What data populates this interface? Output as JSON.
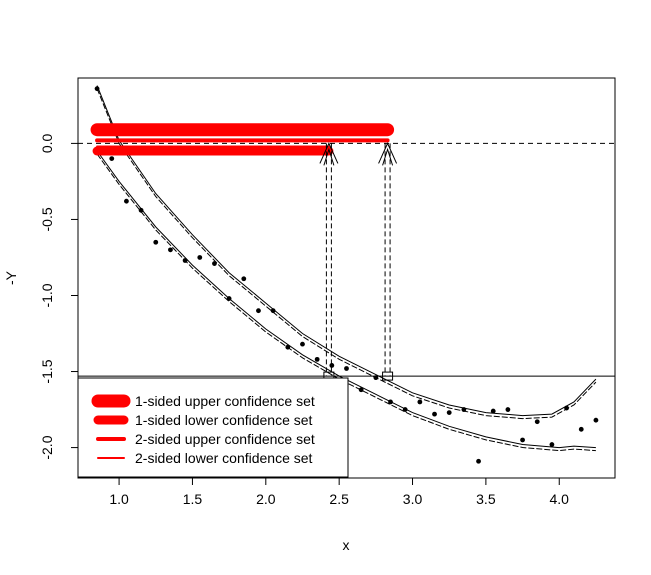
{
  "chart_data": {
    "type": "scatter",
    "xlabel": "x",
    "ylabel": "-Y",
    "xlim": [
      0.72,
      4.38
    ],
    "ylim": [
      -2.2,
      0.43
    ],
    "x_ticks": [
      "1.0",
      "1.5",
      "2.0",
      "2.5",
      "3.0",
      "3.5",
      "4.0"
    ],
    "y_ticks": [
      "0.0",
      "-0.5",
      "-1.0",
      "-1.5",
      "-2.0"
    ],
    "x_tick_values": [
      1.0,
      1.5,
      2.0,
      2.5,
      3.0,
      3.5,
      4.0
    ],
    "y_tick_values": [
      0.0,
      -0.5,
      -1.0,
      -1.5,
      -2.0
    ],
    "points": [
      [
        0.85,
        0.36
      ],
      [
        0.95,
        -0.1
      ],
      [
        1.05,
        -0.38
      ],
      [
        1.15,
        -0.44
      ],
      [
        1.25,
        -0.65
      ],
      [
        1.35,
        -0.7
      ],
      [
        1.45,
        -0.77
      ],
      [
        1.55,
        -0.75
      ],
      [
        1.65,
        -0.79
      ],
      [
        1.75,
        -1.02
      ],
      [
        1.85,
        -0.89
      ],
      [
        1.95,
        -1.1
      ],
      [
        2.05,
        -1.1
      ],
      [
        2.15,
        -1.34
      ],
      [
        2.25,
        -1.32
      ],
      [
        2.35,
        -1.42
      ],
      [
        2.45,
        -1.46
      ],
      [
        2.55,
        -1.48
      ],
      [
        2.65,
        -1.62
      ],
      [
        2.75,
        -1.54
      ],
      [
        2.85,
        -1.7
      ],
      [
        2.95,
        -1.75
      ],
      [
        3.05,
        -1.7
      ],
      [
        3.15,
        -1.78
      ],
      [
        3.25,
        -1.77
      ],
      [
        3.35,
        -1.75
      ],
      [
        3.45,
        -2.09
      ],
      [
        3.55,
        -1.76
      ],
      [
        3.65,
        -1.75
      ],
      [
        3.75,
        -1.95
      ],
      [
        3.85,
        -1.83
      ],
      [
        3.95,
        -1.98
      ],
      [
        4.05,
        -1.74
      ],
      [
        4.15,
        -1.88
      ],
      [
        4.25,
        -1.82
      ]
    ],
    "reference_lines": {
      "horizontal_dashed_y": 0.0,
      "horizontal_solid_y": -1.53
    },
    "confidence_sets": [
      {
        "label": "1-sided upper confidence set",
        "y": 0.09,
        "x_range": [
          0.85,
          2.83
        ]
      },
      {
        "label": "1-sided lower confidence set",
        "y": -0.05,
        "x_range": [
          0.85,
          2.43
        ]
      },
      {
        "label": "2-sided upper confidence set",
        "y": 0.02,
        "x_range": [
          0.85,
          2.83
        ]
      },
      {
        "label": "2-sided lower confidence set",
        "y": -0.02,
        "x_range": [
          0.85,
          2.43
        ]
      }
    ],
    "vertical_markers_x": [
      2.43,
      2.83
    ],
    "bands": {
      "upper_band_x": [
        0.85,
        1.0,
        1.25,
        1.5,
        1.75,
        2.0,
        2.25,
        2.5,
        2.75,
        3.0,
        3.25,
        3.5,
        3.75,
        3.95,
        4.1,
        4.25
      ],
      "upper_band_y": [
        0.38,
        0.02,
        -0.33,
        -0.6,
        -0.85,
        -1.05,
        -1.25,
        -1.4,
        -1.52,
        -1.64,
        -1.72,
        -1.77,
        -1.79,
        -1.78,
        -1.7,
        -1.55
      ],
      "lower_band_x": [
        0.85,
        1.0,
        1.25,
        1.5,
        1.75,
        2.0,
        2.25,
        2.5,
        2.75,
        3.0,
        3.25,
        3.5,
        3.75,
        4.0,
        4.1,
        4.25
      ],
      "lower_band_y": [
        -0.05,
        -0.25,
        -0.55,
        -0.8,
        -1.02,
        -1.22,
        -1.39,
        -1.53,
        -1.65,
        -1.77,
        -1.86,
        -1.93,
        -1.98,
        -2.0,
        -1.99,
        -2.0
      ]
    },
    "legend": {
      "position": "bottom-left",
      "entries": [
        {
          "label": "1-sided upper confidence set",
          "color": "#ff0000",
          "weight": "thickest"
        },
        {
          "label": "1-sided lower confidence set",
          "color": "#ff0000",
          "weight": "thick"
        },
        {
          "label": "2-sided upper confidence set",
          "color": "#ff0000",
          "weight": "medium"
        },
        {
          "label": "2-sided lower confidence set",
          "color": "#ff0000",
          "weight": "thin"
        }
      ]
    },
    "colors": {
      "points": "#000000",
      "confidence_sets": "#ff0000",
      "lines": "#000000"
    }
  }
}
